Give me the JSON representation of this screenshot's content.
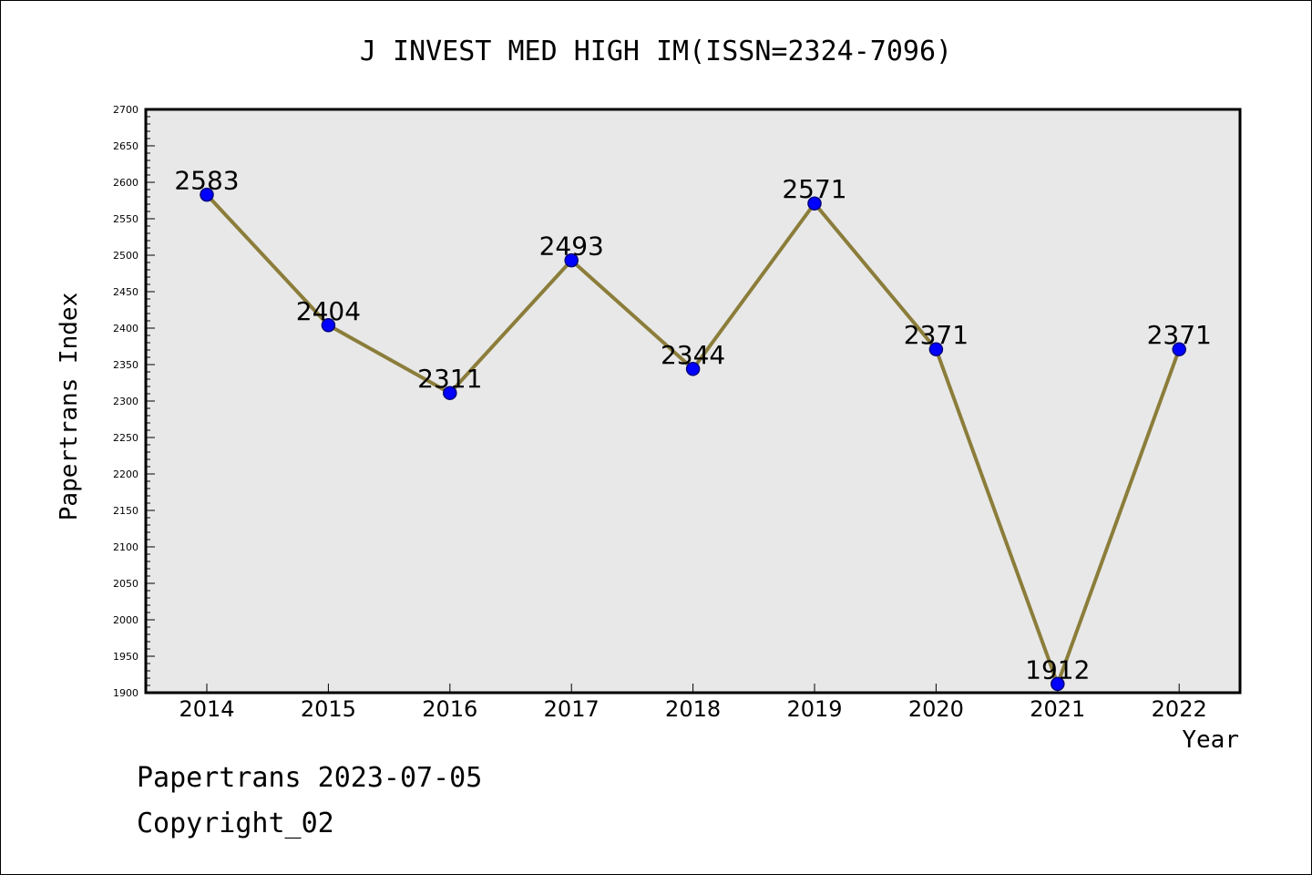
{
  "chart_data": {
    "type": "line",
    "title": "J INVEST MED HIGH IM(ISSN=2324-7096)",
    "xlabel": "Year",
    "ylabel": "Papertrans Index",
    "categories": [
      "2014",
      "2015",
      "2016",
      "2017",
      "2018",
      "2019",
      "2020",
      "2021",
      "2022"
    ],
    "series": [
      {
        "values": [
          2583,
          2404,
          2311,
          2493,
          2344,
          2571,
          2371,
          1912,
          2371
        ]
      }
    ],
    "data_labels": [
      "2583",
      "2404",
      "2311",
      "2493",
      "2344",
      "2571",
      "2371",
      "1912",
      "2371"
    ],
    "ylim": [
      1900,
      2700
    ],
    "yticks": [
      "1900",
      "1950",
      "2000",
      "2050",
      "2100",
      "2150",
      "2200",
      "2250",
      "2300",
      "2350",
      "2400",
      "2450",
      "2500",
      "2550",
      "2600",
      "2650",
      "2700"
    ],
    "y_minor_step": 10,
    "grid": false,
    "legend": "none",
    "colors": {
      "plot_background": "#e8e8e8",
      "line": "#8b7d3a",
      "marker_fill": "#0000ff",
      "marker_edge": "#000080",
      "axis": "#000000"
    }
  },
  "footer": {
    "line1": "Papertrans 2023-07-05",
    "line2": "Copyright_02"
  }
}
